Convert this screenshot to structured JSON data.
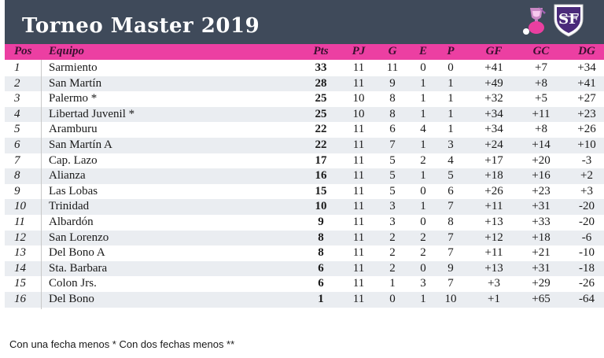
{
  "title": "Torneo Master 2019",
  "colors": {
    "header_bg": "#3f4a5a",
    "table_header_bg": "#ec3fa2",
    "row_alt_bg": "#eaedf1"
  },
  "logos": [
    "pink-trophy-logo",
    "club-shield-logo"
  ],
  "columns": [
    "Pos",
    "Equipo",
    "Pts",
    "PJ",
    "G",
    "E",
    "P",
    "GF",
    "GC",
    "DG"
  ],
  "rows": [
    {
      "pos": "1",
      "team": "Sarmiento",
      "pts": "33",
      "pj": "11",
      "g": "11",
      "e": "0",
      "p": "0",
      "gf": "+41",
      "gc": "+7",
      "dg": "+34"
    },
    {
      "pos": "2",
      "team": "San Martín",
      "pts": "28",
      "pj": "11",
      "g": "9",
      "e": "1",
      "p": "1",
      "gf": "+49",
      "gc": "+8",
      "dg": "+41"
    },
    {
      "pos": "3",
      "team": "Palermo *",
      "pts": "25",
      "pj": "10",
      "g": "8",
      "e": "1",
      "p": "1",
      "gf": "+32",
      "gc": "+5",
      "dg": "+27"
    },
    {
      "pos": "4",
      "team": "Libertad Juvenil *",
      "pts": "25",
      "pj": "10",
      "g": "8",
      "e": "1",
      "p": "1",
      "gf": "+34",
      "gc": "+11",
      "dg": "+23"
    },
    {
      "pos": "5",
      "team": "Aramburu",
      "pts": "22",
      "pj": "11",
      "g": "6",
      "e": "4",
      "p": "1",
      "gf": "+34",
      "gc": "+8",
      "dg": "+26"
    },
    {
      "pos": "6",
      "team": "San Martín A",
      "pts": "22",
      "pj": "11",
      "g": "7",
      "e": "1",
      "p": "3",
      "gf": "+24",
      "gc": "+14",
      "dg": "+10"
    },
    {
      "pos": "7",
      "team": "Cap. Lazo",
      "pts": "17",
      "pj": "11",
      "g": "5",
      "e": "2",
      "p": "4",
      "gf": "+17",
      "gc": "+20",
      "dg": "-3"
    },
    {
      "pos": "8",
      "team": "Alianza",
      "pts": "16",
      "pj": "11",
      "g": "5",
      "e": "1",
      "p": "5",
      "gf": "+18",
      "gc": "+16",
      "dg": "+2"
    },
    {
      "pos": "9",
      "team": "Las Lobas",
      "pts": "15",
      "pj": "11",
      "g": "5",
      "e": "0",
      "p": "6",
      "gf": "+26",
      "gc": "+23",
      "dg": "+3"
    },
    {
      "pos": "10",
      "team": "Trinidad",
      "pts": "10",
      "pj": "11",
      "g": "3",
      "e": "1",
      "p": "7",
      "gf": "+11",
      "gc": "+31",
      "dg": "-20"
    },
    {
      "pos": "11",
      "team": "Albardón",
      "pts": "9",
      "pj": "11",
      "g": "3",
      "e": "0",
      "p": "8",
      "gf": "+13",
      "gc": "+33",
      "dg": "-20"
    },
    {
      "pos": "12",
      "team": "San Lorenzo",
      "pts": "8",
      "pj": "11",
      "g": "2",
      "e": "2",
      "p": "7",
      "gf": "+12",
      "gc": "+18",
      "dg": "-6"
    },
    {
      "pos": "13",
      "team": "Del Bono A",
      "pts": "8",
      "pj": "11",
      "g": "2",
      "e": "2",
      "p": "7",
      "gf": "+11",
      "gc": "+21",
      "dg": "-10"
    },
    {
      "pos": "14",
      "team": "Sta. Barbara",
      "pts": "6",
      "pj": "11",
      "g": "2",
      "e": "0",
      "p": "9",
      "gf": "+13",
      "gc": "+31",
      "dg": "-18"
    },
    {
      "pos": "15",
      "team": "Colon Jrs.",
      "pts": "6",
      "pj": "11",
      "g": "1",
      "e": "3",
      "p": "7",
      "gf": "+3",
      "gc": "+29",
      "dg": "-26"
    },
    {
      "pos": "16",
      "team": "Del Bono",
      "pts": "1",
      "pj": "11",
      "g": "0",
      "e": "1",
      "p": "10",
      "gf": "+1",
      "gc": "+65",
      "dg": "-64"
    }
  ],
  "footnote": "Con una fecha menos *   Con dos fechas menos **"
}
